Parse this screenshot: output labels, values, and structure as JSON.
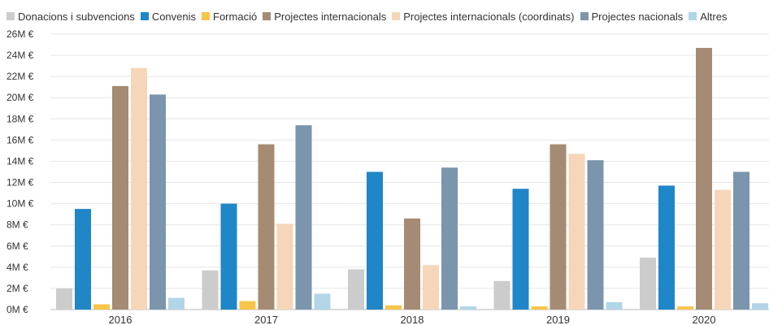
{
  "chart_data": {
    "type": "bar",
    "categories": [
      "2016",
      "2017",
      "2018",
      "2019",
      "2020"
    ],
    "series": [
      {
        "name": "Donacions i subvencions",
        "color": "#cccccc",
        "values": [
          2.0,
          3.7,
          3.8,
          2.7,
          4.9
        ]
      },
      {
        "name": "Convenis",
        "color": "#1f86c7",
        "values": [
          9.5,
          10.0,
          13.0,
          11.4,
          11.7
        ]
      },
      {
        "name": "Formació",
        "color": "#f7c54a",
        "values": [
          0.5,
          0.8,
          0.4,
          0.3,
          0.3
        ]
      },
      {
        "name": "Projectes internacionals",
        "color": "#a58b73",
        "values": [
          21.1,
          15.6,
          8.6,
          15.6,
          24.7
        ]
      },
      {
        "name": "Projectes internacionals (coordinats)",
        "color": "#f5d6b8",
        "values": [
          22.8,
          8.1,
          4.2,
          14.7,
          11.3
        ]
      },
      {
        "name": "Projectes nacionals",
        "color": "#7b95ad",
        "values": [
          20.3,
          17.4,
          13.4,
          14.1,
          13.0
        ]
      },
      {
        "name": "Altres",
        "color": "#b2d5e8",
        "values": [
          1.1,
          1.5,
          0.3,
          0.7,
          0.6
        ]
      }
    ],
    "y_ticks": [
      "0M €",
      "2M €",
      "4M €",
      "6M €",
      "8M €",
      "10M €",
      "12M €",
      "14M €",
      "16M €",
      "18M €",
      "20M €",
      "22M €",
      "24M €",
      "26M €"
    ],
    "ylim": [
      0,
      26
    ],
    "unit": "M €",
    "grid": true,
    "legend_position": "top"
  }
}
